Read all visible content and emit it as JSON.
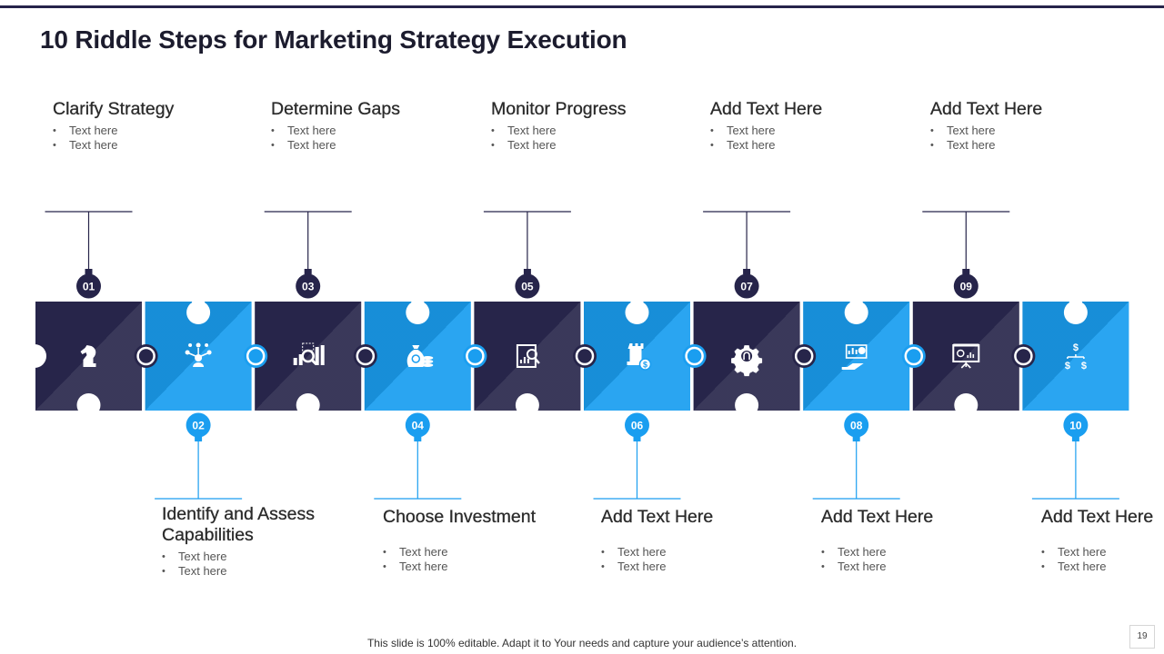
{
  "title": "10 Riddle Steps for Marketing Strategy Execution",
  "colors": {
    "dark": "#27254a",
    "light": "#1a9ef0",
    "line_dark": "#26244a",
    "line_light": "#1a9ef0"
  },
  "steps": [
    {
      "number": "01",
      "heading": "Clarify Strategy",
      "bullets": [
        "Text here",
        "Text here"
      ],
      "icon": "chess-knight-icon"
    },
    {
      "number": "02",
      "heading": "Identify and Assess Capabilities",
      "bullets": [
        "Text here",
        "Text here"
      ],
      "icon": "network-people-icon"
    },
    {
      "number": "03",
      "heading": "Determine Gaps",
      "bullets": [
        "Text here",
        "Text here"
      ],
      "icon": "chart-magnifier-icon"
    },
    {
      "number": "04",
      "heading": "Choose Investment",
      "bullets": [
        "Text here",
        "Text here"
      ],
      "icon": "money-bag-icon"
    },
    {
      "number": "05",
      "heading": "Monitor Progress",
      "bullets": [
        "Text here",
        "Text here"
      ],
      "icon": "report-search-icon"
    },
    {
      "number": "06",
      "heading": "Add Text Here",
      "bullets": [
        "Text here",
        "Text here"
      ],
      "icon": "castle-coin-icon"
    },
    {
      "number": "07",
      "heading": "Add Text Here",
      "bullets": [
        "Text here",
        "Text here"
      ],
      "icon": "gear-icon"
    },
    {
      "number": "08",
      "heading": "Add Text Here",
      "bullets": [
        "Text here",
        "Text here"
      ],
      "icon": "hand-chart-icon"
    },
    {
      "number": "09",
      "heading": "Add Text Here",
      "bullets": [
        "Text here",
        "Text here"
      ],
      "icon": "presentation-board-icon"
    },
    {
      "number": "10",
      "heading": "Add Text Here",
      "bullets": [
        "Text here",
        "Text here"
      ],
      "icon": "dollar-flow-icon"
    }
  ],
  "footer": {
    "note": "This slide is 100% editable. Adapt it to Your needs and capture your audience’s attention.",
    "page_number": "19"
  }
}
